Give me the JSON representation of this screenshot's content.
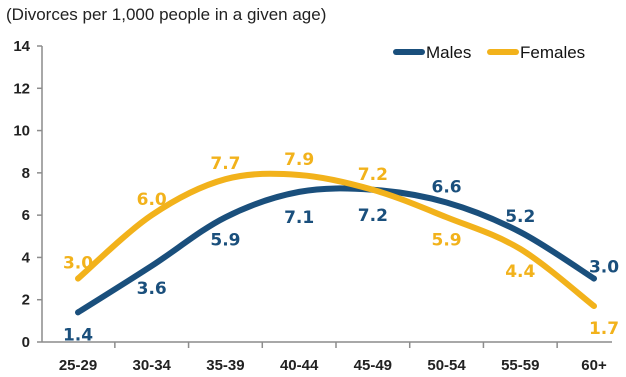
{
  "chart_data": {
    "type": "line",
    "subtitle": "(Divorces per 1,000 people in a given age)",
    "categories": [
      "25-29",
      "30-34",
      "35-39",
      "40-44",
      "45-49",
      "50-54",
      "55-59",
      "60+"
    ],
    "ylim": [
      0,
      14
    ],
    "yticks": [
      "0",
      "2",
      "4",
      "6",
      "8",
      "10",
      "12",
      "14"
    ],
    "grid": false,
    "legend_position": "top-right",
    "series": [
      {
        "name": "Males",
        "color": "#1a4f7c",
        "values": [
          1.4,
          3.6,
          5.9,
          7.1,
          7.2,
          6.6,
          5.2,
          3.0
        ],
        "labels": [
          "1.4",
          "3.6",
          "5.9",
          "7.1",
          "7.2",
          "6.6",
          "5.2",
          "3.0"
        ]
      },
      {
        "name": "Females",
        "color": "#f2b21b",
        "values": [
          3.0,
          6.0,
          7.7,
          7.9,
          7.2,
          5.9,
          4.4,
          1.7
        ],
        "labels": [
          "3.0",
          "6.0",
          "7.7",
          "7.9",
          "7.2",
          "5.9",
          "4.4",
          "1.7"
        ]
      }
    ]
  }
}
